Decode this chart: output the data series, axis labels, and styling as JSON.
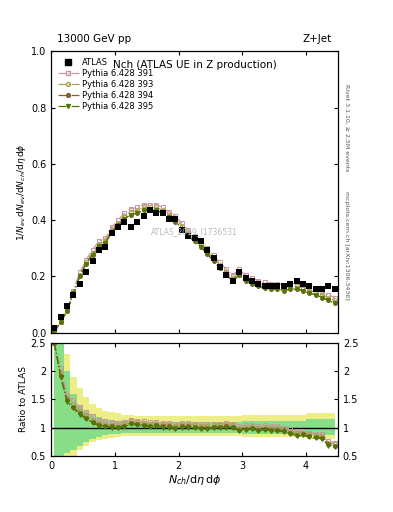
{
  "title": "Nch (ATLAS UE in Z production)",
  "top_left_label": "13000 GeV pp",
  "top_right_label": "Z+Jet",
  "right_label_top": "Rivet 3.1.10, ≥ 2.5M events",
  "right_label_bottom": "mcplots.cern.ch [arXiv:1306.3436]",
  "watermark": "ATLAS_2019_I1736531",
  "xlabel": "$N_{ch}/\\mathrm{d}\\eta\\,\\mathrm{d}\\phi$",
  "ylabel_main": "$1/N_{ev}\\,\\mathrm{d}N_{ev}/\\mathrm{d}N_{ch}/\\mathrm{d}\\eta\\,\\mathrm{d}\\phi$",
  "ylabel_ratio": "Ratio to ATLAS",
  "xlim": [
    0,
    4.5
  ],
  "ylim_main": [
    0,
    1.0
  ],
  "ylim_ratio": [
    0.5,
    2.5
  ],
  "x_data": [
    0.05,
    0.15,
    0.25,
    0.35,
    0.45,
    0.55,
    0.65,
    0.75,
    0.85,
    0.95,
    1.05,
    1.15,
    1.25,
    1.35,
    1.45,
    1.55,
    1.65,
    1.75,
    1.85,
    1.95,
    2.05,
    2.15,
    2.25,
    2.35,
    2.45,
    2.55,
    2.65,
    2.75,
    2.85,
    2.95,
    3.05,
    3.15,
    3.25,
    3.35,
    3.45,
    3.55,
    3.65,
    3.75,
    3.85,
    3.95,
    4.05,
    4.15,
    4.25,
    4.35,
    4.45
  ],
  "atlas_y": [
    0.018,
    0.055,
    0.095,
    0.135,
    0.175,
    0.215,
    0.255,
    0.295,
    0.305,
    0.355,
    0.375,
    0.395,
    0.375,
    0.395,
    0.415,
    0.435,
    0.425,
    0.425,
    0.405,
    0.405,
    0.365,
    0.345,
    0.335,
    0.325,
    0.295,
    0.265,
    0.235,
    0.205,
    0.185,
    0.215,
    0.195,
    0.185,
    0.175,
    0.165,
    0.165,
    0.165,
    0.165,
    0.175,
    0.185,
    0.175,
    0.165,
    0.155,
    0.155,
    0.165,
    0.155
  ],
  "py391_y": [
    0.003,
    0.04,
    0.08,
    0.15,
    0.215,
    0.26,
    0.295,
    0.325,
    0.335,
    0.375,
    0.4,
    0.425,
    0.44,
    0.445,
    0.455,
    0.455,
    0.455,
    0.445,
    0.43,
    0.415,
    0.39,
    0.365,
    0.345,
    0.325,
    0.3,
    0.275,
    0.25,
    0.225,
    0.205,
    0.225,
    0.205,
    0.195,
    0.185,
    0.18,
    0.175,
    0.175,
    0.17,
    0.175,
    0.175,
    0.17,
    0.16,
    0.155,
    0.145,
    0.135,
    0.125
  ],
  "py393_y": [
    0.003,
    0.04,
    0.078,
    0.145,
    0.205,
    0.25,
    0.285,
    0.315,
    0.325,
    0.365,
    0.39,
    0.415,
    0.43,
    0.435,
    0.445,
    0.445,
    0.445,
    0.435,
    0.42,
    0.405,
    0.38,
    0.355,
    0.335,
    0.315,
    0.29,
    0.265,
    0.24,
    0.215,
    0.195,
    0.215,
    0.195,
    0.185,
    0.175,
    0.17,
    0.165,
    0.165,
    0.16,
    0.165,
    0.165,
    0.16,
    0.15,
    0.145,
    0.135,
    0.125,
    0.115
  ],
  "py394_y": [
    0.003,
    0.038,
    0.076,
    0.14,
    0.2,
    0.245,
    0.278,
    0.308,
    0.318,
    0.358,
    0.382,
    0.405,
    0.42,
    0.425,
    0.435,
    0.435,
    0.435,
    0.425,
    0.41,
    0.395,
    0.37,
    0.345,
    0.325,
    0.305,
    0.28,
    0.255,
    0.23,
    0.205,
    0.185,
    0.205,
    0.185,
    0.175,
    0.165,
    0.16,
    0.155,
    0.155,
    0.15,
    0.155,
    0.155,
    0.15,
    0.14,
    0.135,
    0.125,
    0.115,
    0.105
  ],
  "py395_y": [
    0.003,
    0.038,
    0.076,
    0.14,
    0.2,
    0.245,
    0.278,
    0.308,
    0.318,
    0.358,
    0.382,
    0.405,
    0.42,
    0.425,
    0.435,
    0.435,
    0.435,
    0.425,
    0.41,
    0.395,
    0.37,
    0.345,
    0.325,
    0.305,
    0.28,
    0.255,
    0.23,
    0.205,
    0.185,
    0.205,
    0.185,
    0.175,
    0.165,
    0.16,
    0.155,
    0.155,
    0.15,
    0.155,
    0.155,
    0.15,
    0.14,
    0.135,
    0.125,
    0.115,
    0.105
  ],
  "color_391": "#c896a0",
  "color_393": "#a8a050",
  "color_394": "#806030",
  "color_395": "#507800",
  "color_atlas": "#000000",
  "ratio_391": [
    2.5,
    2.05,
    1.58,
    1.48,
    1.36,
    1.28,
    1.2,
    1.14,
    1.12,
    1.1,
    1.08,
    1.1,
    1.14,
    1.12,
    1.11,
    1.09,
    1.1,
    1.08,
    1.08,
    1.06,
    1.08,
    1.08,
    1.07,
    1.06,
    1.06,
    1.07,
    1.07,
    1.08,
    1.07,
    1.02,
    1.04,
    1.05,
    1.02,
    1.04,
    1.02,
    1.02,
    1.0,
    0.97,
    0.93,
    0.94,
    0.91,
    0.89,
    0.88,
    0.76,
    0.73
  ],
  "ratio_393": [
    2.5,
    1.98,
    1.52,
    1.42,
    1.3,
    1.22,
    1.14,
    1.08,
    1.06,
    1.05,
    1.04,
    1.06,
    1.11,
    1.09,
    1.08,
    1.06,
    1.07,
    1.05,
    1.05,
    1.03,
    1.05,
    1.05,
    1.04,
    1.03,
    1.03,
    1.04,
    1.04,
    1.05,
    1.04,
    0.99,
    1.01,
    1.02,
    0.99,
    1.01,
    0.99,
    0.99,
    0.97,
    0.94,
    0.9,
    0.91,
    0.88,
    0.86,
    0.85,
    0.73,
    0.7
  ],
  "ratio_394": [
    2.5,
    1.92,
    1.48,
    1.36,
    1.25,
    1.17,
    1.1,
    1.05,
    1.03,
    1.02,
    1.01,
    1.03,
    1.08,
    1.06,
    1.05,
    1.03,
    1.04,
    1.02,
    1.02,
    1.0,
    1.02,
    1.02,
    1.01,
    1.0,
    1.0,
    1.01,
    1.01,
    1.02,
    1.01,
    0.96,
    0.98,
    0.99,
    0.96,
    0.98,
    0.96,
    0.96,
    0.94,
    0.91,
    0.87,
    0.88,
    0.85,
    0.83,
    0.82,
    0.7,
    0.67
  ],
  "ratio_395": [
    2.5,
    1.9,
    1.46,
    1.34,
    1.23,
    1.15,
    1.08,
    1.03,
    1.01,
    1.0,
    0.99,
    1.01,
    1.06,
    1.04,
    1.03,
    1.01,
    1.02,
    1.0,
    1.0,
    0.98,
    1.0,
    1.0,
    0.99,
    0.98,
    0.98,
    0.99,
    0.99,
    1.0,
    0.99,
    0.94,
    0.96,
    0.97,
    0.94,
    0.96,
    0.94,
    0.94,
    0.92,
    0.89,
    0.85,
    0.86,
    0.83,
    0.81,
    0.8,
    0.68,
    0.65
  ],
  "yellow_hi": [
    2.5,
    2.5,
    2.3,
    1.9,
    1.7,
    1.55,
    1.42,
    1.35,
    1.3,
    1.27,
    1.25,
    1.23,
    1.22,
    1.21,
    1.21,
    1.2,
    1.2,
    1.2,
    1.2,
    1.2,
    1.2,
    1.2,
    1.2,
    1.2,
    1.2,
    1.2,
    1.2,
    1.2,
    1.2,
    1.2,
    1.22,
    1.22,
    1.22,
    1.22,
    1.22,
    1.22,
    1.22,
    1.22,
    1.22,
    1.22,
    1.25,
    1.25,
    1.25,
    1.25,
    1.25
  ],
  "yellow_lo": [
    0.4,
    0.4,
    0.45,
    0.5,
    0.6,
    0.68,
    0.74,
    0.78,
    0.8,
    0.82,
    0.84,
    0.85,
    0.85,
    0.85,
    0.85,
    0.85,
    0.85,
    0.85,
    0.85,
    0.85,
    0.85,
    0.85,
    0.85,
    0.85,
    0.85,
    0.85,
    0.85,
    0.85,
    0.85,
    0.85,
    0.83,
    0.83,
    0.83,
    0.83,
    0.83,
    0.83,
    0.83,
    0.83,
    0.83,
    0.83,
    0.8,
    0.8,
    0.8,
    0.8,
    0.8
  ],
  "green_hi": [
    2.5,
    2.5,
    2.0,
    1.6,
    1.4,
    1.3,
    1.22,
    1.18,
    1.15,
    1.13,
    1.12,
    1.11,
    1.1,
    1.1,
    1.1,
    1.1,
    1.1,
    1.1,
    1.1,
    1.1,
    1.1,
    1.1,
    1.1,
    1.1,
    1.1,
    1.1,
    1.1,
    1.1,
    1.1,
    1.1,
    1.12,
    1.12,
    1.12,
    1.12,
    1.12,
    1.12,
    1.12,
    1.12,
    1.12,
    1.12,
    1.15,
    1.15,
    1.15,
    1.15,
    1.15
  ],
  "green_lo": [
    0.5,
    0.5,
    0.55,
    0.6,
    0.68,
    0.75,
    0.8,
    0.84,
    0.86,
    0.88,
    0.89,
    0.9,
    0.9,
    0.9,
    0.9,
    0.9,
    0.9,
    0.9,
    0.9,
    0.9,
    0.9,
    0.9,
    0.9,
    0.9,
    0.9,
    0.9,
    0.9,
    0.9,
    0.9,
    0.9,
    0.88,
    0.88,
    0.88,
    0.88,
    0.88,
    0.88,
    0.88,
    0.88,
    0.88,
    0.88,
    0.86,
    0.86,
    0.86,
    0.86,
    0.86
  ]
}
